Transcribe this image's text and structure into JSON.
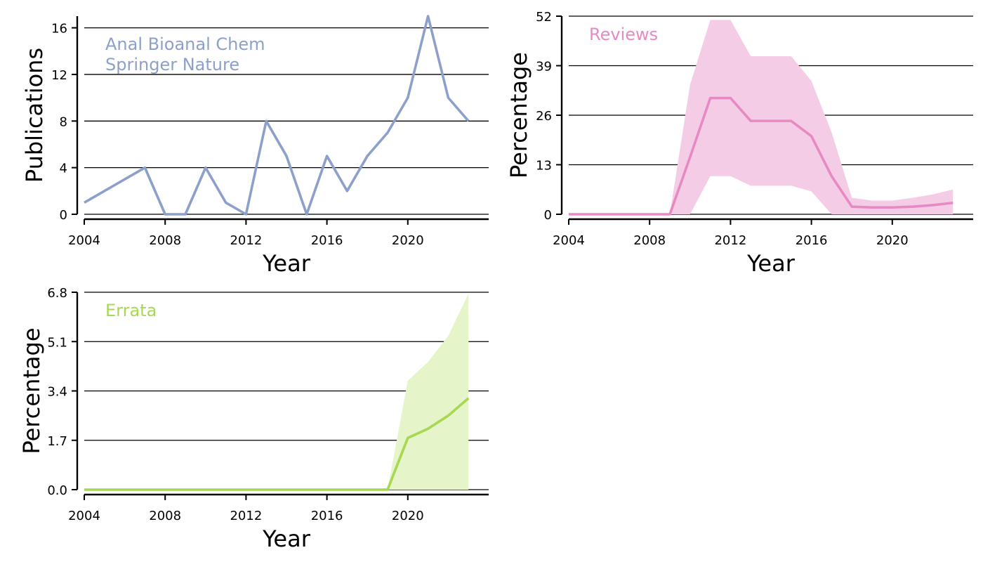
{
  "chart_data": [
    {
      "type": "line",
      "xlabel": "Year",
      "ylabel": "Publications",
      "annotation": [
        "Anal Bioanal Chem",
        "Springer Nature"
      ],
      "color": "#8da0cb",
      "xlim": [
        2004,
        2024
      ],
      "ylim": [
        0,
        17
      ],
      "xticks": [
        2004,
        2008,
        2012,
        2016,
        2020
      ],
      "yticks": [
        0,
        4,
        8,
        12,
        16
      ],
      "ytick_labels": [
        "0",
        "4",
        "8",
        "12",
        "16"
      ],
      "grid": "y",
      "x": [
        2004,
        2005,
        2006,
        2007,
        2008,
        2009,
        2010,
        2011,
        2012,
        2013,
        2014,
        2015,
        2016,
        2017,
        2018,
        2019,
        2020,
        2021,
        2022,
        2023
      ],
      "series": [
        {
          "values": [
            1,
            2,
            3,
            4,
            0,
            0,
            4,
            1,
            0,
            8,
            5,
            0,
            5,
            2,
            5,
            7,
            10,
            17,
            10,
            8
          ]
        }
      ]
    },
    {
      "type": "area",
      "xlabel": "Year",
      "ylabel": "Percentage",
      "annotation": [
        "Reviews"
      ],
      "color": "#e78ac3",
      "band_color": "#f5cce6",
      "xlim": [
        2004,
        2024
      ],
      "ylim": [
        0,
        52
      ],
      "xticks": [
        2004,
        2008,
        2012,
        2016,
        2020
      ],
      "yticks": [
        0,
        13,
        26,
        39,
        52
      ],
      "ytick_labels": [
        "0",
        "13",
        "26",
        "39",
        "52"
      ],
      "grid": "y",
      "x": [
        2004,
        2005,
        2006,
        2007,
        2008,
        2009,
        2010,
        2011,
        2012,
        2013,
        2014,
        2015,
        2016,
        2017,
        2018,
        2019,
        2020,
        2021,
        2022,
        2023
      ],
      "series": [
        {
          "values": [
            0,
            0,
            0,
            0,
            0,
            0,
            15,
            30.5,
            30.5,
            24.5,
            24.5,
            24.5,
            20.5,
            10,
            2,
            1.8,
            1.8,
            2,
            2.4,
            3
          ],
          "lower": [
            0,
            0,
            0,
            0,
            0,
            0,
            0,
            10,
            10,
            7.5,
            7.5,
            7.5,
            6,
            0,
            0,
            0,
            0,
            0,
            0,
            0
          ],
          "upper": [
            0,
            0,
            0,
            0,
            0,
            0,
            34,
            51,
            51,
            41.5,
            41.5,
            41.5,
            35,
            21.5,
            4.3,
            3.6,
            3.6,
            4.3,
            5.2,
            6.5
          ]
        }
      ]
    },
    {
      "type": "area",
      "xlabel": "Year",
      "ylabel": "Percentage",
      "annotation": [
        "Errata"
      ],
      "color": "#a6d854",
      "band_color": "#e5f5c9",
      "xlim": [
        2004,
        2024
      ],
      "ylim": [
        0,
        6.8
      ],
      "xticks": [
        2004,
        2008,
        2012,
        2016,
        2020
      ],
      "yticks": [
        0,
        1.7,
        3.4,
        5.1,
        6.8
      ],
      "ytick_labels": [
        "0.0",
        "1.7",
        "3.4",
        "5.1",
        "6.8"
      ],
      "grid": "y",
      "x": [
        2004,
        2005,
        2006,
        2007,
        2008,
        2009,
        2010,
        2011,
        2012,
        2013,
        2014,
        2015,
        2016,
        2017,
        2018,
        2019,
        2020,
        2021,
        2022,
        2023
      ],
      "series": [
        {
          "values": [
            0,
            0,
            0,
            0,
            0,
            0,
            0,
            0,
            0,
            0,
            0,
            0,
            0,
            0,
            0,
            0,
            1.78,
            2.1,
            2.55,
            3.15
          ],
          "lower": [
            0,
            0,
            0,
            0,
            0,
            0,
            0,
            0,
            0,
            0,
            0,
            0,
            0,
            0,
            0,
            0,
            0,
            0,
            0,
            0
          ],
          "upper": [
            0,
            0,
            0,
            0,
            0,
            0,
            0,
            0,
            0,
            0,
            0,
            0,
            0,
            0,
            0,
            0,
            3.75,
            4.4,
            5.3,
            6.75
          ]
        }
      ]
    }
  ]
}
